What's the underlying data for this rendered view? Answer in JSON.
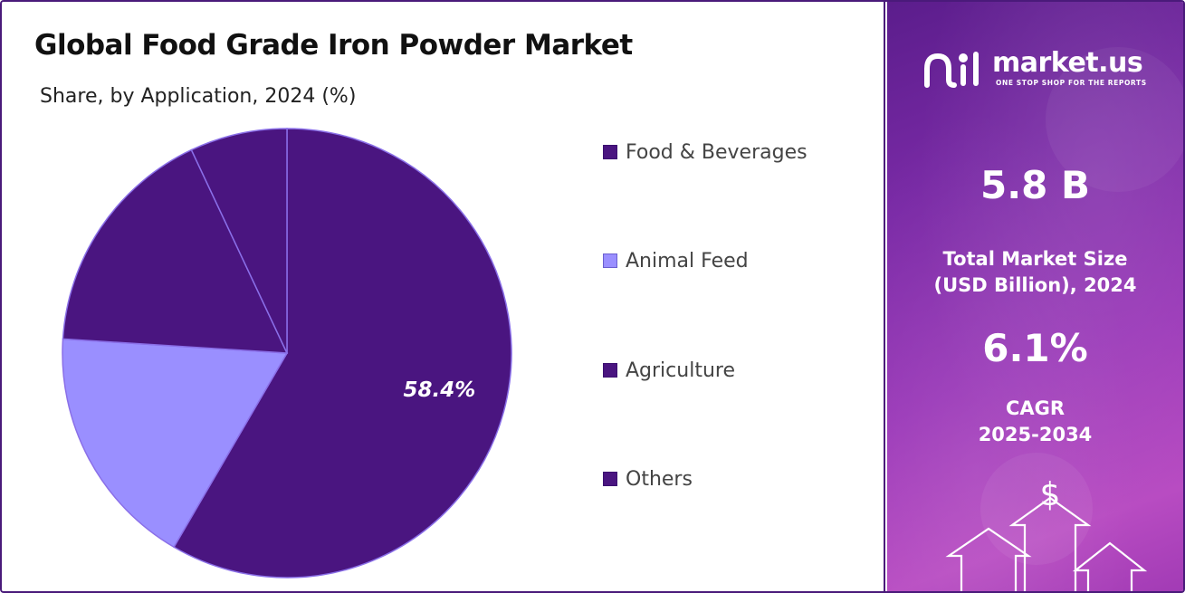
{
  "chart": {
    "title": "Global Food Grade Iron Powder Market",
    "subtitle": "Share, by Application, 2024 (%)"
  },
  "chart_data": {
    "type": "pie",
    "title": "Global Food Grade Iron Powder Market",
    "subtitle": "Share, by Application, 2024 (%)",
    "categories": [
      "Food & Beverages",
      "Animal Feed",
      "Agriculture",
      "Others"
    ],
    "values": [
      58.4,
      17.6,
      17.0,
      7.0
    ],
    "colors": [
      "#4a1580",
      "#9a8fff",
      "#4a1580",
      "#4a1580"
    ],
    "data_labels": [
      "58.4%",
      "",
      "",
      ""
    ],
    "start_angle_deg": 0,
    "direction": "clockwise",
    "legend": "right"
  },
  "legend": {
    "items": [
      {
        "label": "Food & Beverages",
        "color": "#4a1580"
      },
      {
        "label": "Animal Feed",
        "color": "#9a8fff"
      },
      {
        "label": "Agriculture",
        "color": "#4a1580"
      },
      {
        "label": "Others",
        "color": "#4a1580"
      }
    ]
  },
  "brand": {
    "name": "market.us",
    "tagline": "ONE STOP SHOP FOR THE REPORTS"
  },
  "stats": {
    "market_size_value": "5.8 B",
    "market_size_label_line1": "Total Market Size",
    "market_size_label_line2": "(USD Billion), 2024",
    "cagr_value": "6.1%",
    "cagr_label_line1": "CAGR",
    "cagr_label_line2": "2025-2034",
    "currency_symbol": "$"
  },
  "icons": [
    "market-us-logo-icon",
    "dollar-icon",
    "arrow-up-icon"
  ]
}
